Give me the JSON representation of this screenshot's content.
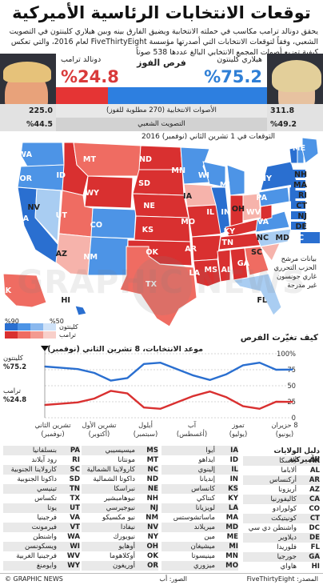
{
  "header": {
    "title": "توقعات الانتخابات الرئاسية الأميركية",
    "subtitle": "يحقق دونالد ترامب مكاسب في حملته الانتخابية ويضيق الفارق بينه وبين هيلاري كلينتون في التصويت الشعبي، وفقاً لتوقعات الانتخابات التي أصدرتها مؤسسة FiveThirtyEight لعام 2016، والتي تعكس كيفية توزيع أصوات المجمع الانتخابي البالغ عددها 538 صوتاً"
  },
  "summary": {
    "clinton_name": "هيلاري كلينتون",
    "trump_name": "دونالد ترامب",
    "win_chance_label": "فرص الفوز",
    "clinton_win_pct": "%75.2",
    "trump_win_pct": "%24.8",
    "clinton_win_value": 75.2,
    "trump_win_value": 24.8,
    "electoral_label": "الأصوات الانتخابية (270 مطلوبة للفوز)",
    "clinton_electoral": "311.8",
    "trump_electoral": "225.0",
    "popular_label": "التصويت الشعبي",
    "clinton_popular": "%49.2",
    "trump_popular": "%44.5"
  },
  "map": {
    "heading": "التوقعات في 1 تشرين الثاني (نوفمبر) 2016",
    "legend_note": "بيانات مرشح الحزب التحرري غاري جونسون غير مدرجة",
    "scale_clinton_label": "كلينتون",
    "scale_trump_label": "ترامب",
    "scale_max": "%90",
    "scale_min": "%50",
    "colors": {
      "dem_strong": "#2a6fd0",
      "dem_mid": "#4d94e6",
      "dem_light": "#a9cdf2",
      "rep_strong": "#d93030",
      "rep_mid": "#ef6c62",
      "rep_light": "#f6b3ab"
    },
    "state_labels": [
      "WA",
      "OR",
      "CA",
      "NV",
      "ID",
      "MT",
      "WY",
      "UT",
      "AZ",
      "CO",
      "NM",
      "ND",
      "SD",
      "NE",
      "KS",
      "OK",
      "TX",
      "MN",
      "IA",
      "MO",
      "AR",
      "LA",
      "WI",
      "IL",
      "MI",
      "IN",
      "OH",
      "KY",
      "TN",
      "MS",
      "AL",
      "GA",
      "FL",
      "SC",
      "NC",
      "VA",
      "WV",
      "PA",
      "NY",
      "ME",
      "VT",
      "AK",
      "HI"
    ],
    "east_labels": [
      "NH",
      "MA",
      "RI",
      "CT",
      "NJ",
      "DE",
      "MD",
      "DC"
    ]
  },
  "watermark": "GRAPHIC NEWS",
  "chart": {
    "title": "كيف تغيّرت الفرص",
    "event_label": "موعد الانتخابات، 8 تشرين الثاني (نوفمبر)",
    "clinton_label": "كلينتون",
    "clinton_value": "%75.2",
    "trump_label": "ترامب",
    "trump_value": "%24.8",
    "y_ticks": [
      "100%",
      "75",
      "50",
      "25",
      "0"
    ],
    "x_ticks": [
      {
        "a": "8 حزيران",
        "b": "(يونيو)"
      },
      {
        "a": "تموز",
        "b": "(يوليو)"
      },
      {
        "a": "آب",
        "b": "(أغسطس)"
      },
      {
        "a": "أيلول",
        "b": "(سبتمبر)"
      },
      {
        "a": "تشرين الأول",
        "b": "(أكتوبر)"
      },
      {
        "a": "تشرين الثاني",
        "b": "(نوفمبر)"
      }
    ]
  },
  "chart_data": {
    "type": "line",
    "title": "كيف تغيّرت الفرص",
    "xlabel": "",
    "ylabel": "",
    "ylim": [
      0,
      100
    ],
    "x": [
      "Jun 8",
      "Jun 20",
      "Jul 1",
      "Jul 10",
      "Jul 20",
      "Jul 30",
      "Aug 10",
      "Aug 20",
      "Sep 1",
      "Sep 10",
      "Sep 20",
      "Oct 1",
      "Oct 10",
      "Oct 20",
      "Nov 1",
      "Nov 8"
    ],
    "series": [
      {
        "name": "كلينتون",
        "color": "#2a6fd0",
        "values": [
          80,
          78,
          76,
          70,
          58,
          62,
          84,
          86,
          76,
          66,
          59,
          68,
          82,
          86,
          75,
          75.2
        ]
      },
      {
        "name": "ترامب",
        "color": "#d93030",
        "values": [
          20,
          22,
          24,
          30,
          42,
          38,
          16,
          14,
          24,
          34,
          41,
          32,
          18,
          14,
          25,
          24.8
        ]
      }
    ]
  },
  "states_key": {
    "heading": "دليل الولايات الأميركية",
    "columns": [
      [
        [
          "AK",
          "ألاسكا"
        ],
        [
          "AL",
          "ألاباما"
        ],
        [
          "AR",
          "أركنساس"
        ],
        [
          "AZ",
          "أريزونا"
        ],
        [
          "CA",
          "كاليفورنيا"
        ],
        [
          "CO",
          "كولورادو"
        ],
        [
          "CT",
          "كونيتيكت"
        ],
        [
          "DC",
          "واشنطن دي سي"
        ],
        [
          "DE",
          "ديلاوير"
        ],
        [
          "FL",
          "فلوريدا"
        ],
        [
          "GA",
          "جورجيا"
        ],
        [
          "HI",
          "هاواي"
        ]
      ],
      [
        [
          "IA",
          "أيوا"
        ],
        [
          "ID",
          "ايداهو"
        ],
        [
          "IL",
          "إلينوي"
        ],
        [
          "IN",
          "إنديانا"
        ],
        [
          "KS",
          "كانساس"
        ],
        [
          "KY",
          "كنتاكي"
        ],
        [
          "LA",
          "لويزيانا"
        ],
        [
          "MA",
          "ماساتشوستس"
        ],
        [
          "MD",
          "ميريلاند"
        ],
        [
          "ME",
          "مين"
        ],
        [
          "MI",
          "ميشيغان"
        ],
        [
          "MN",
          "مينيسوتا"
        ],
        [
          "MO",
          "ميزوري"
        ]
      ],
      [
        [
          "MS",
          "ميسيسيبي"
        ],
        [
          "MT",
          "مونتانا"
        ],
        [
          "NC",
          "كارولاينا الشمالية"
        ],
        [
          "ND",
          "داكوتا الشمالية"
        ],
        [
          "NE",
          "نبراسكا"
        ],
        [
          "NH",
          "نيوهامبشير"
        ],
        [
          "NJ",
          "نيوجيرسي"
        ],
        [
          "NM",
          "نيو مكسيكو"
        ],
        [
          "NV",
          "نيفادا"
        ],
        [
          "NY",
          "نيويورك"
        ],
        [
          "OH",
          "أوهايو"
        ],
        [
          "OK",
          "أوكلاهوما"
        ],
        [
          "OR",
          "أوريغون"
        ]
      ],
      [
        [
          "PA",
          "بنسلفانيا"
        ],
        [
          "RI",
          "رود آيلاند"
        ],
        [
          "SC",
          "كارولاينا الجنوبية"
        ],
        [
          "SD",
          "داكوتا الجنوبية"
        ],
        [
          "TN",
          "تينيسي"
        ],
        [
          "TX",
          "تكساس"
        ],
        [
          "UT",
          "يوتا"
        ],
        [
          "VA",
          "فرجينيا"
        ],
        [
          "VT",
          "فيرمونت"
        ],
        [
          "WA",
          "واشنطن"
        ],
        [
          "WI",
          "ويسكونسن"
        ],
        [
          "WV",
          "فرجينيا الغربية"
        ],
        [
          "WY",
          "وايومنغ"
        ]
      ]
    ]
  },
  "footer": {
    "source": "المصدر: FiveThirtyEight",
    "photos": "الصور: أب",
    "credit": "© GRAPHIC NEWS"
  }
}
